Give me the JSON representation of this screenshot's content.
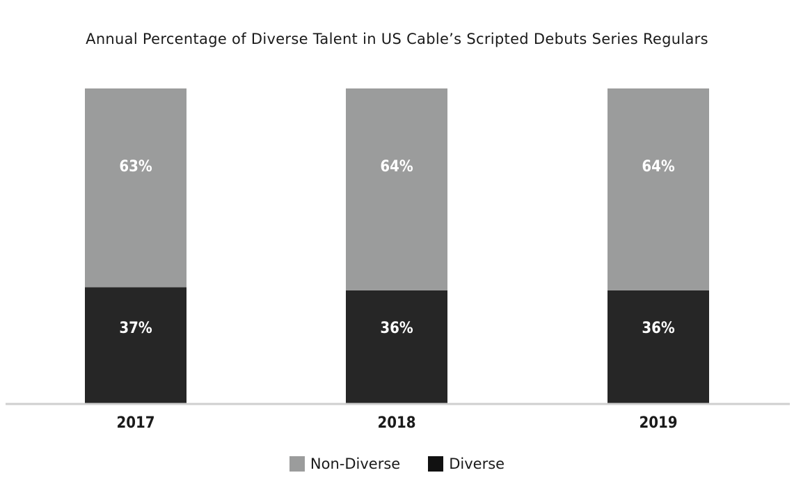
{
  "chart_data": {
    "type": "bar",
    "stacked": true,
    "title": "Annual Percentage of Diverse Talent in US Cable’s Scripted Debuts Series Regulars",
    "categories": [
      "2017",
      "2018",
      "2019"
    ],
    "series": [
      {
        "name": "Diverse",
        "values": [
          37,
          36,
          36
        ],
        "labels": [
          "37%",
          "36%",
          "36%"
        ],
        "color": "#262626"
      },
      {
        "name": "Non-Diverse",
        "values": [
          63,
          64,
          64
        ],
        "labels": [
          "63%",
          "64%",
          "64%"
        ],
        "color": "#9b9c9c"
      }
    ],
    "ylim": [
      0,
      100
    ],
    "grid": false,
    "legend_position": "bottom",
    "legend": [
      "Non-Diverse",
      "Diverse"
    ]
  }
}
